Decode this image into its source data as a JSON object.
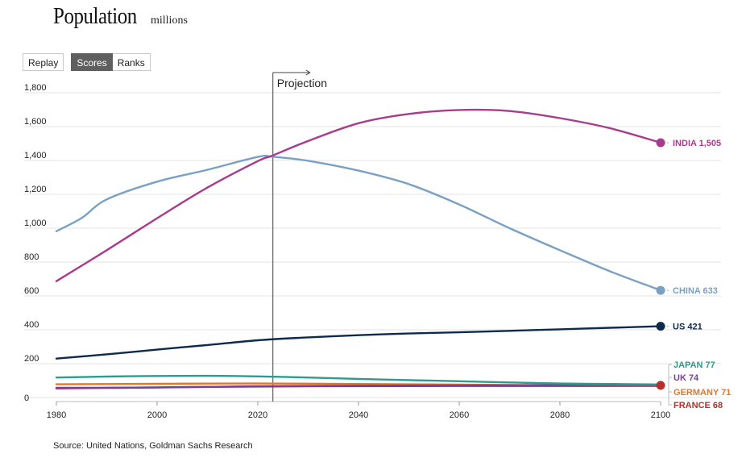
{
  "header": {
    "title": "Population",
    "unit": "millions"
  },
  "controls": {
    "replay_label": "Replay",
    "scores_label": "Scores",
    "ranks_label": "Ranks",
    "active": "Scores"
  },
  "annotation": {
    "projection_label": "Projection",
    "projection_year": 2023
  },
  "source": "Source: United Nations, Goldman Sachs Research",
  "colors": {
    "india": "#a83c8c",
    "china": "#7aa0c4",
    "us": "#0f2a4f",
    "japan": "#2e9c8a",
    "uk": "#7a3f9e",
    "germany": "#e0782c",
    "france": "#b8302a"
  },
  "chart_data": {
    "type": "line",
    "title": "Population",
    "ylabel": "millions",
    "xlabel": "",
    "xlim": [
      1980,
      2100
    ],
    "ylim": [
      0,
      1800
    ],
    "x_ticks": [
      1980,
      2000,
      2020,
      2040,
      2060,
      2080,
      2100
    ],
    "x_tick_labels": [
      "1980",
      "2000",
      "2020",
      "2040",
      "2060",
      "2080",
      "2100"
    ],
    "y_ticks": [
      0,
      200,
      400,
      600,
      800,
      1000,
      1200,
      1400,
      1600,
      1800
    ],
    "y_tick_labels": [
      "0",
      "200",
      "400",
      "600",
      "800",
      "1,000",
      "1,200",
      "1,400",
      "1,600",
      "1,800"
    ],
    "grid": true,
    "series": [
      {
        "name": "INDIA",
        "end_label": "INDIA 1,505",
        "color": "#a83c8c",
        "x": [
          1980,
          1990,
          2000,
          2010,
          2020,
          2023,
          2030,
          2040,
          2050,
          2060,
          2070,
          2080,
          2090,
          2100
        ],
        "values": [
          687,
          870,
          1059,
          1240,
          1396,
          1430,
          1515,
          1620,
          1675,
          1698,
          1692,
          1650,
          1590,
          1505
        ]
      },
      {
        "name": "CHINA",
        "end_label": "CHINA 633",
        "color": "#7aa0c4",
        "x": [
          1980,
          1985,
          1990,
          2000,
          2010,
          2020,
          2023,
          2030,
          2040,
          2050,
          2060,
          2070,
          2080,
          2090,
          2100
        ],
        "values": [
          982,
          1060,
          1170,
          1275,
          1345,
          1421,
          1422,
          1398,
          1340,
          1260,
          1140,
          1000,
          870,
          745,
          633
        ]
      },
      {
        "name": "US",
        "end_label": "US 421",
        "color": "#0f2a4f",
        "x": [
          1980,
          1990,
          2000,
          2010,
          2020,
          2030,
          2040,
          2050,
          2060,
          2070,
          2080,
          2090,
          2100
        ],
        "values": [
          230,
          255,
          283,
          310,
          338,
          355,
          368,
          378,
          385,
          394,
          403,
          412,
          421
        ]
      },
      {
        "name": "JAPAN",
        "end_label": "JAPAN 77",
        "color": "#2e9c8a",
        "x": [
          1980,
          1990,
          2000,
          2010,
          2020,
          2030,
          2040,
          2050,
          2060,
          2070,
          2080,
          2090,
          2100
        ],
        "values": [
          118,
          124,
          127,
          128,
          125,
          118,
          110,
          103,
          96,
          89,
          83,
          80,
          77
        ]
      },
      {
        "name": "UK",
        "end_label": "UK 74",
        "color": "#7a3f9e",
        "x": [
          1980,
          2000,
          2020,
          2040,
          2060,
          2080,
          2100
        ],
        "values": [
          57,
          59,
          67,
          70,
          72,
          73,
          74
        ]
      },
      {
        "name": "GERMANY",
        "end_label": "GERMANY 71",
        "color": "#e0782c",
        "x": [
          1980,
          2000,
          2020,
          2040,
          2060,
          2080,
          2100
        ],
        "values": [
          78,
          81,
          83,
          80,
          76,
          73,
          71
        ]
      },
      {
        "name": "FRANCE",
        "end_label": "FRANCE 68",
        "color": "#b8302a",
        "x": [
          1980,
          2000,
          2020,
          2040,
          2060,
          2080,
          2100
        ],
        "values": [
          54,
          60,
          65,
          67,
          68,
          68,
          68
        ]
      }
    ]
  }
}
